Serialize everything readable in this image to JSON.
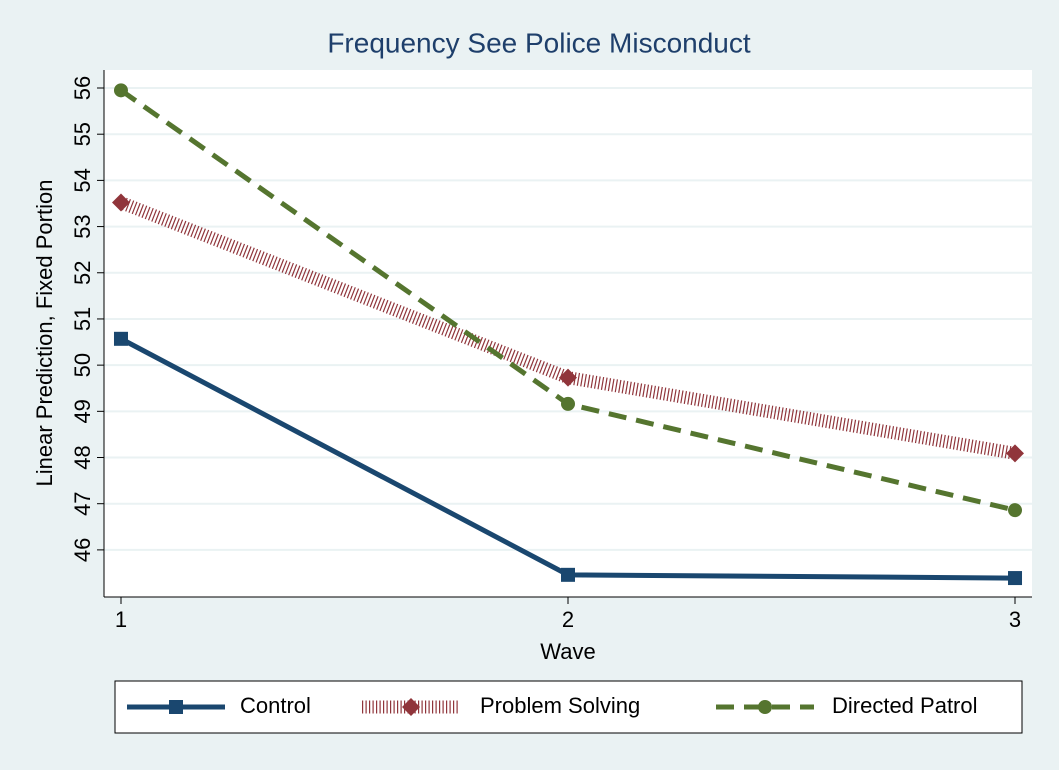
{
  "chart_data": {
    "type": "line",
    "title": "Frequency See Police Misconduct",
    "x_label": "Wave",
    "y_label": "Linear Prediction, Fixed Portion",
    "x": [
      1,
      2,
      3
    ],
    "xlim": [
      0.962,
      3.038
    ],
    "xticks": [
      1,
      2,
      3
    ],
    "ylim": [
      44.98,
      56.39
    ],
    "yticks": [
      46,
      47,
      48,
      49,
      50,
      51,
      52,
      53,
      54,
      55,
      56
    ],
    "grid": true,
    "legend": "bottom",
    "series": [
      {
        "name": "Control",
        "color": "#1a476f",
        "marker": "square",
        "style": "solid",
        "values": [
          50.57,
          45.46,
          45.39
        ]
      },
      {
        "name": "Problem Solving",
        "color": "#90353b",
        "marker": "diamond",
        "style": "hatched",
        "values": [
          53.52,
          49.73,
          48.09
        ]
      },
      {
        "name": "Directed Patrol",
        "color": "#55752f",
        "marker": "circle",
        "style": "dashed",
        "values": [
          55.95,
          49.16,
          46.86
        ]
      }
    ]
  }
}
